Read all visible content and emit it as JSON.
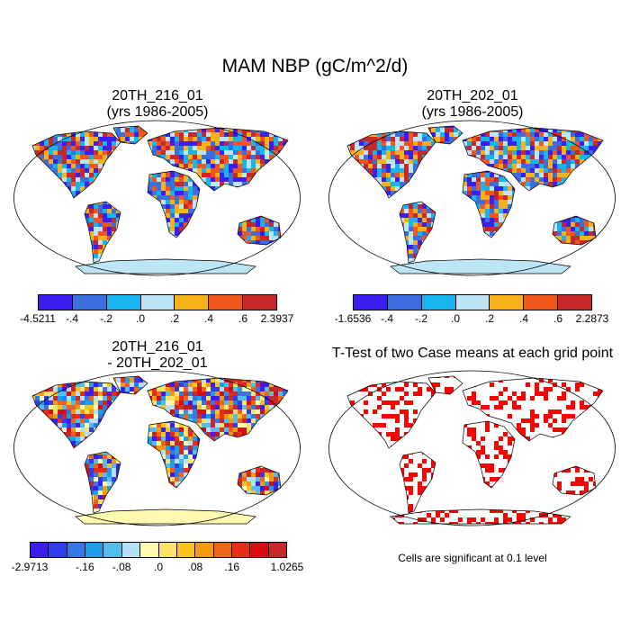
{
  "main_title": "MAM NBP (gC/m^2/d)",
  "panels": {
    "top_left": {
      "title_line1": "20TH_216_01",
      "title_line2": "(yrs 1986-2005)"
    },
    "top_right": {
      "title_line1": "20TH_202_01",
      "title_line2": "(yrs 1986-2005)"
    },
    "bottom_left": {
      "title_line1": "20TH_216_01",
      "title_line2": "- 20TH_202_01"
    },
    "bottom_right": {
      "title": "T-Test of two Case means at each grid point",
      "note": "Cells are significant at 0.1 level"
    }
  },
  "colorbars": {
    "top_left": {
      "colors": [
        "#3a1ff0",
        "#3b6fe0",
        "#18b4f0",
        "#bce6f6",
        "#f6b21a",
        "#f0561e",
        "#c8282a"
      ],
      "labels": [
        "-4.5211",
        "-.4",
        "-.2",
        ".0",
        ".2",
        ".4",
        ".6",
        "2.3937"
      ]
    },
    "top_right": {
      "colors": [
        "#3a1ff0",
        "#3b6fe0",
        "#18b4f0",
        "#bce6f6",
        "#f6b21a",
        "#f0561e",
        "#c8282a"
      ],
      "labels": [
        "-1.6536",
        "-.4",
        "-.2",
        ".0",
        ".2",
        ".4",
        ".6",
        "2.2873"
      ]
    },
    "bottom_left": {
      "colors": [
        "#3a1ff0",
        "#2f3ee8",
        "#3577e4",
        "#1e9ee8",
        "#55bcf0",
        "#b4e1f6",
        "#fdfbb0",
        "#fbe26a",
        "#f8c41c",
        "#f39a10",
        "#f0641a",
        "#e82c18",
        "#d80c10",
        "#c8282a"
      ],
      "labels": [
        "-2.9713",
        "-.16",
        "-.08",
        ".0",
        ".08",
        ".16",
        "1.0265"
      ]
    }
  },
  "map_colors": {
    "ocean": "#ffffff",
    "outline": "#000000",
    "significant": "#ff0000"
  }
}
